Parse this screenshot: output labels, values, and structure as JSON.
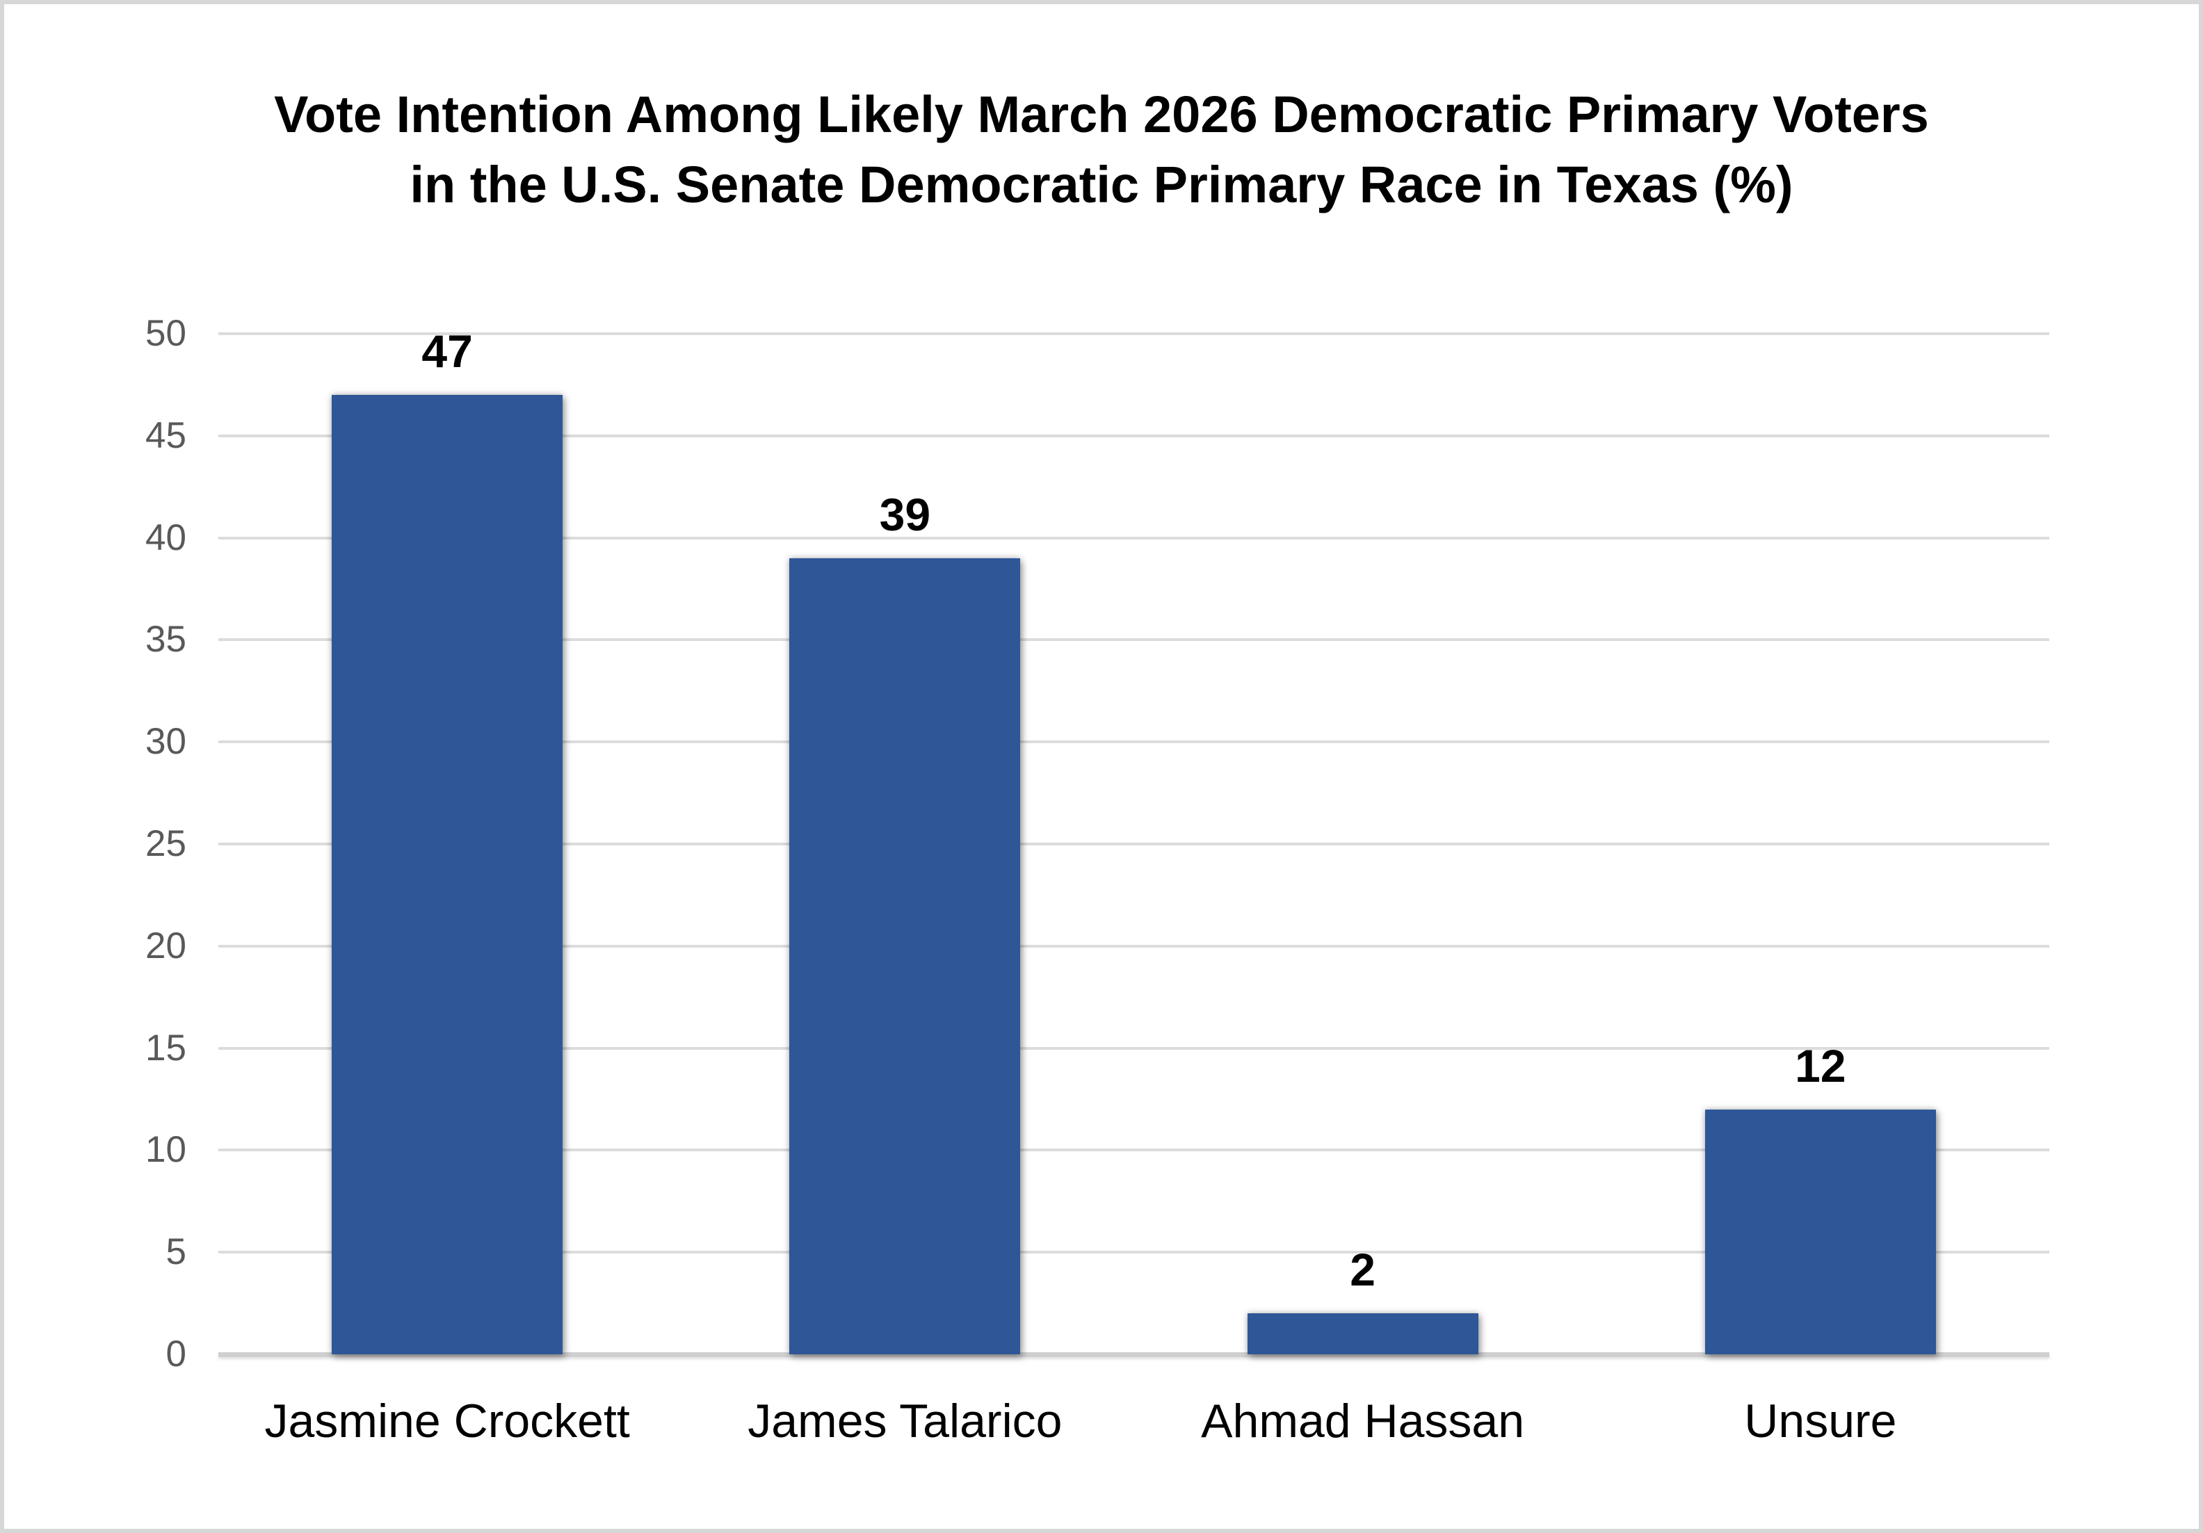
{
  "frame": {
    "background_color": "#ffffff",
    "border_color": "#d7d7d7"
  },
  "title": {
    "line1": "Vote Intention Among Likely March 2026 Democratic Primary Voters",
    "line2": "in the U.S. Senate Democratic Primary Race in Texas (%)"
  },
  "chart_data": {
    "type": "bar",
    "title": "Vote Intention Among Likely March 2026 Democratic Primary Voters in the U.S. Senate Democratic Primary Race in Texas (%)",
    "categories": [
      "Jasmine Crockett",
      "James Talarico",
      "Ahmad Hassan",
      "Unsure"
    ],
    "values": [
      47,
      39,
      2,
      12
    ],
    "data_labels_shown": true,
    "xlabel": "",
    "ylabel": "",
    "ylim": [
      0,
      50
    ],
    "ytick_step": 5,
    "yticks": [
      0,
      5,
      10,
      15,
      20,
      25,
      30,
      35,
      40,
      45,
      50
    ],
    "grid": true,
    "legend": "none",
    "bar_color": "#2f5697",
    "gridline_color": "#dcdcdc",
    "axis_line_color": "#cfcfcf",
    "tick_label_color": "#595959",
    "data_label_color": "#000000",
    "category_label_color": "#000000"
  }
}
